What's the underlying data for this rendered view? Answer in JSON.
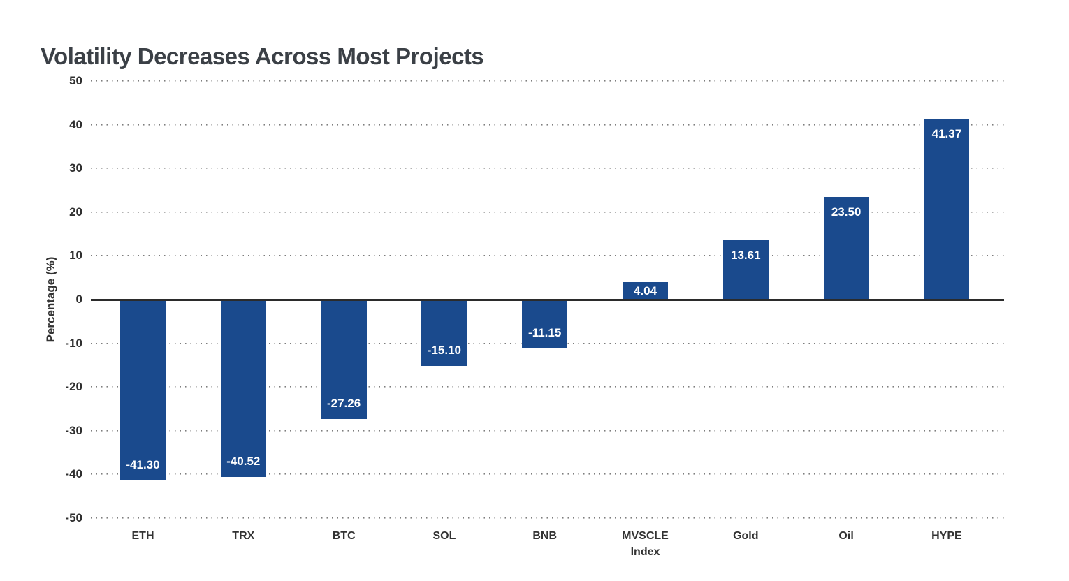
{
  "chart_data": {
    "type": "bar",
    "title": "Volatility Decreases Across Most Projects",
    "xlabel": "",
    "ylabel": "Percentage (%)",
    "categories": [
      "ETH",
      "TRX",
      "BTC",
      "SOL",
      "BNB",
      "MVSCLE\nIndex",
      "Gold",
      "Oil",
      "HYPE"
    ],
    "values": [
      -41.3,
      -40.52,
      -27.26,
      -15.1,
      -11.15,
      4.04,
      13.61,
      23.5,
      41.37
    ],
    "value_labels": [
      "-41.30",
      "-40.52",
      "-27.26",
      "-15.10",
      "-11.15",
      "4.04",
      "13.61",
      "23.50",
      "41.37"
    ],
    "ylim": [
      -50,
      50
    ],
    "yticks": [
      50,
      40,
      30,
      20,
      10,
      0,
      -10,
      -20,
      -30,
      -40,
      -50
    ],
    "grid": "horizontal-dotted",
    "legend": "none",
    "bar_color": "#1a4a8d",
    "value_label_color": "#ffffff",
    "zero_line_color": "#2b2b2b",
    "grid_color": "#7d7d7d",
    "title_color": "#3b4046",
    "tick_label_color": "#2f2f2f"
  }
}
